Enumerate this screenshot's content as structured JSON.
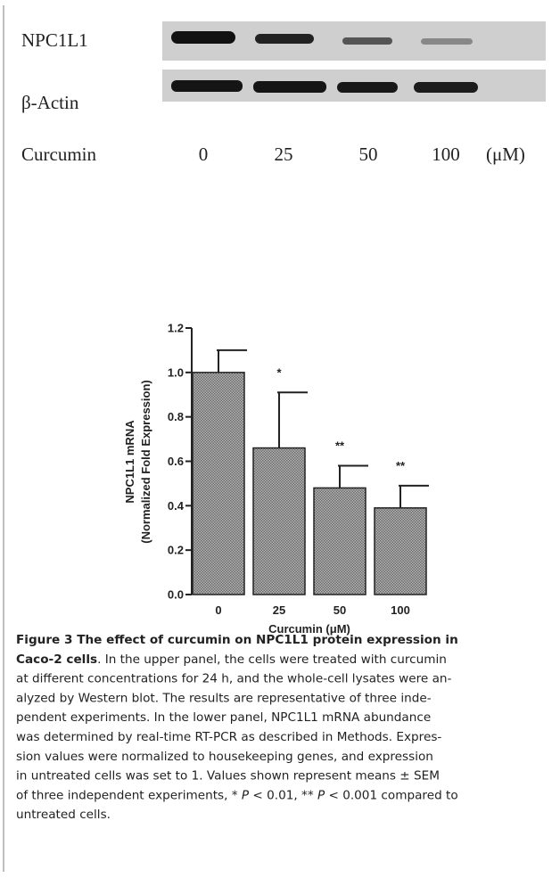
{
  "blot": {
    "rows": [
      "NPC1L1",
      "β-Actin"
    ],
    "treatment": "Curcumin",
    "doses": [
      0,
      25,
      50,
      100
    ],
    "unit": "(μM)"
  },
  "chart_data": {
    "type": "bar",
    "ylabel": [
      "NPC1L1 mRNA",
      "(Normalized Fold Expression)"
    ],
    "xlabel": "Curcumin (μM)",
    "categories": [
      "0",
      "25",
      "50",
      "100"
    ],
    "values": [
      1.0,
      0.66,
      0.48,
      0.39
    ],
    "errors": [
      0.1,
      0.25,
      0.1,
      0.1
    ],
    "significance": [
      null,
      "*",
      "**",
      "**"
    ],
    "color": "#8f8f8f",
    "ylim": [
      0,
      1.2
    ],
    "yticks": [
      {
        "value": 0,
        "label": "0.0"
      },
      0.2,
      0.4,
      0.6,
      0.8,
      {
        "value": 1,
        "label": "1.0"
      },
      1.2
    ]
  },
  "caption": {
    "lines": [
      [
        {
          "text": "Figure 3 The effect of curcumin on NPC1L1 protein expression in",
          "bold": true
        }
      ],
      [
        {
          "text": "Caco-2 cells",
          "bold": true
        },
        {
          "text": ". In the upper panel, the cells were treated with curcumin"
        }
      ],
      [
        {
          "text": "at different concentrations for 24 h, and the whole-cell lysates were an-"
        }
      ],
      [
        {
          "text": "alyzed by Western blot. The results are representative of three inde-"
        }
      ],
      [
        {
          "text": "pendent experiments. In the lower panel, NPC1L1 mRNA abundance"
        }
      ],
      [
        {
          "text": "was determined by real-time RT-PCR as described in Methods. Expres-"
        }
      ],
      [
        {
          "text": "sion values were normalized to housekeeping genes, and expression"
        }
      ],
      [
        {
          "text": "in untreated cells was set to 1. Values shown represent means ± SEM"
        }
      ],
      [
        {
          "text": "of three independent experiments, * "
        },
        {
          "text": "P",
          "italic": true
        },
        {
          "text": " < 0.01, ** "
        },
        {
          "text": "P",
          "italic": true
        },
        {
          "text": " < 0.001 compared to"
        }
      ],
      [
        {
          "text": "untreated cells."
        }
      ]
    ]
  }
}
